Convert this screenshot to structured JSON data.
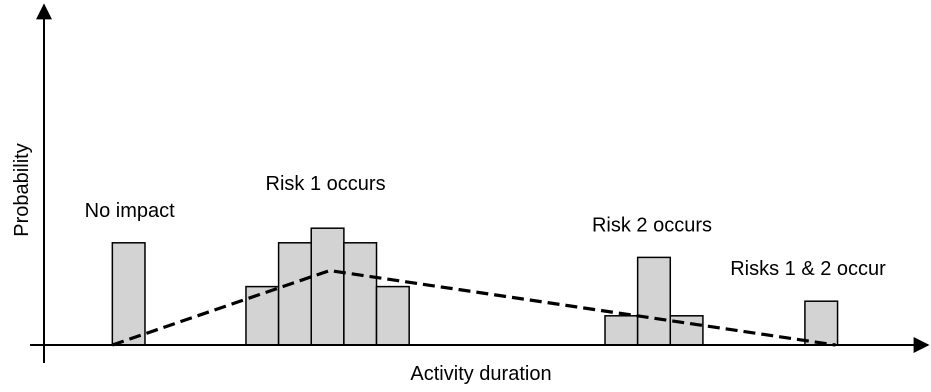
{
  "chart_data": {
    "type": "bar",
    "title": "",
    "xlabel": "Activity duration",
    "ylabel": "Probability",
    "grid": false,
    "legend": "none",
    "colors": {
      "bar_fill": "#d3d3d3",
      "bar_stroke": "#000000",
      "axis": "#000000",
      "trend": "#000000"
    },
    "bar_groups": [
      {
        "label": "No impact",
        "bars": [
          {
            "x0": 6.7,
            "x1": 9.9,
            "y": 7.0
          }
        ]
      },
      {
        "label": "Risk 1 occurs",
        "bars": [
          {
            "x0": 19.8,
            "x1": 23.0,
            "y": 4.0
          },
          {
            "x0": 23.0,
            "x1": 26.2,
            "y": 7.0
          },
          {
            "x0": 26.2,
            "x1": 29.4,
            "y": 8.0
          },
          {
            "x0": 29.4,
            "x1": 32.6,
            "y": 7.0
          },
          {
            "x0": 32.6,
            "x1": 35.8,
            "y": 4.0
          }
        ]
      },
      {
        "label": "Risk 2 occurs",
        "bars": [
          {
            "x0": 55.0,
            "x1": 58.2,
            "y": 2.0
          },
          {
            "x0": 58.2,
            "x1": 61.4,
            "y": 6.0
          },
          {
            "x0": 61.4,
            "x1": 64.6,
            "y": 2.0
          }
        ]
      },
      {
        "label": "Risks 1 & 2 occur",
        "bars": [
          {
            "x0": 74.6,
            "x1": 77.8,
            "y": 3.0
          }
        ]
      }
    ],
    "trend_line": {
      "style": "dashed",
      "points": [
        [
          6.7,
          0.0
        ],
        [
          28.0,
          5.1
        ],
        [
          77.6,
          0.0
        ]
      ]
    }
  }
}
